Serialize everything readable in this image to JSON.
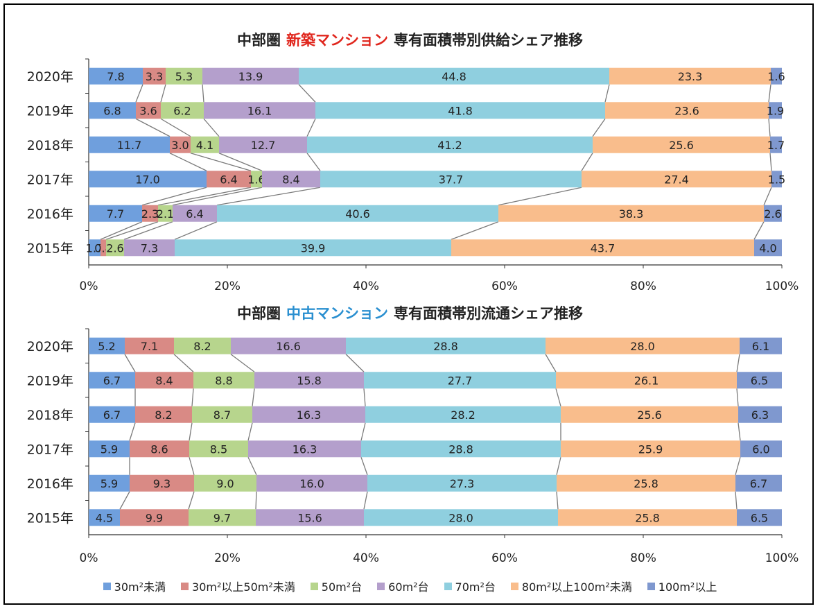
{
  "categories_order": [
    "30m²未満",
    "30m²以上50m²未満",
    "50m²台",
    "60m²台",
    "70m²台",
    "80m²以上100m²未満",
    "100m²以上"
  ],
  "colors": [
    "#6f9fdd",
    "#d98a85",
    "#b7d58d",
    "#b49fcc",
    "#8fcfdf",
    "#f9bd8c",
    "#7f98cf"
  ],
  "chart_data": [
    {
      "type": "bar",
      "stacked": "percent",
      "orientation": "horizontal",
      "title_parts": [
        "中部圏",
        "新築マンション",
        "専有面積帯別供給シェア推移"
      ],
      "title_colors": [
        "#222222",
        "#e0261d",
        "#222222"
      ],
      "categories": [
        "2020年",
        "2019年",
        "2018年",
        "2017年",
        "2016年",
        "2015年"
      ],
      "xlim": [
        0,
        100
      ],
      "x_ticks": [
        "0%",
        "20%",
        "40%",
        "60%",
        "80%",
        "100%"
      ],
      "series": [
        {
          "name": "30m²未満",
          "values": [
            7.8,
            6.8,
            11.7,
            17.0,
            7.7,
            1.7
          ]
        },
        {
          "name": "30m²以上50m²未満",
          "values": [
            3.3,
            3.6,
            3.0,
            6.4,
            2.3,
            0.8
          ]
        },
        {
          "name": "50m²台",
          "values": [
            5.3,
            6.2,
            4.1,
            1.6,
            2.1,
            2.6
          ]
        },
        {
          "name": "60m²台",
          "values": [
            13.9,
            16.1,
            12.7,
            8.4,
            6.4,
            7.3
          ]
        },
        {
          "name": "70m²台",
          "values": [
            44.8,
            41.8,
            41.2,
            37.7,
            40.6,
            39.9
          ]
        },
        {
          "name": "80m²以上100m²未満",
          "values": [
            23.3,
            23.6,
            25.6,
            27.4,
            38.3,
            43.7
          ]
        },
        {
          "name": "100m²以上",
          "values": [
            1.6,
            1.9,
            1.7,
            1.5,
            2.6,
            4.0
          ]
        }
      ]
    },
    {
      "type": "bar",
      "stacked": "percent",
      "orientation": "horizontal",
      "title_parts": [
        "中部圏",
        "中古マンション",
        "専有面積帯別流通シェア推移"
      ],
      "title_colors": [
        "#222222",
        "#2a8fd0",
        "#222222"
      ],
      "categories": [
        "2020年",
        "2019年",
        "2018年",
        "2017年",
        "2016年",
        "2015年"
      ],
      "xlim": [
        0,
        100
      ],
      "x_ticks": [
        "0%",
        "20%",
        "40%",
        "60%",
        "80%",
        "100%"
      ],
      "series": [
        {
          "name": "30m²未満",
          "values": [
            5.2,
            6.7,
            6.7,
            5.9,
            5.9,
            4.5
          ]
        },
        {
          "name": "30m²以上50m²未満",
          "values": [
            7.1,
            8.4,
            8.2,
            8.6,
            9.3,
            9.9
          ]
        },
        {
          "name": "50m²台",
          "values": [
            8.2,
            8.8,
            8.7,
            8.5,
            9.0,
            9.7
          ]
        },
        {
          "name": "60m²台",
          "values": [
            16.6,
            15.8,
            16.3,
            16.3,
            16.0,
            15.6
          ]
        },
        {
          "name": "70m²台",
          "values": [
            28.8,
            27.7,
            28.2,
            28.8,
            27.3,
            28.0
          ]
        },
        {
          "name": "80m²以上100m²未満",
          "values": [
            28.0,
            26.1,
            25.6,
            25.9,
            25.8,
            25.8
          ]
        },
        {
          "name": "100m²以上",
          "values": [
            6.1,
            6.5,
            6.3,
            6.0,
            6.7,
            6.5
          ]
        }
      ]
    }
  ]
}
